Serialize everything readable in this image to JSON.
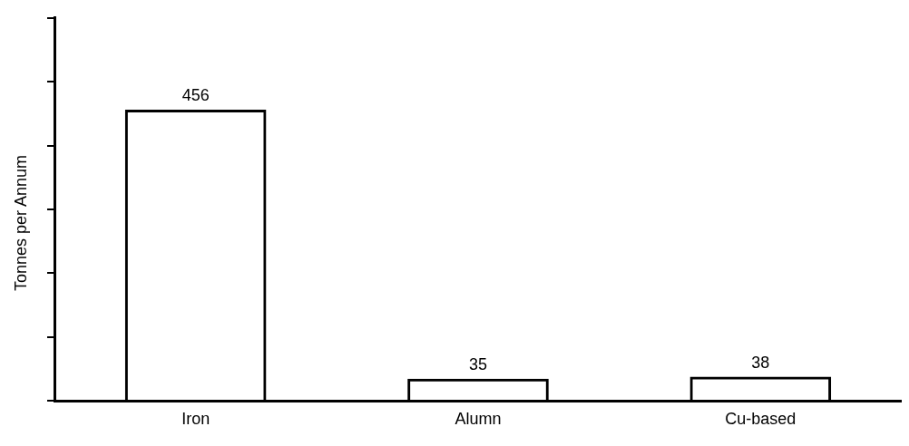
{
  "chart_data": {
    "type": "bar",
    "ylabel": "Tonnes per Annum",
    "categories": [
      "Iron",
      "Alumn",
      "Cu-based"
    ],
    "values": [
      456,
      35,
      38
    ],
    "color": "#000000",
    "data_labels": true,
    "grid": false,
    "legend": false
  }
}
